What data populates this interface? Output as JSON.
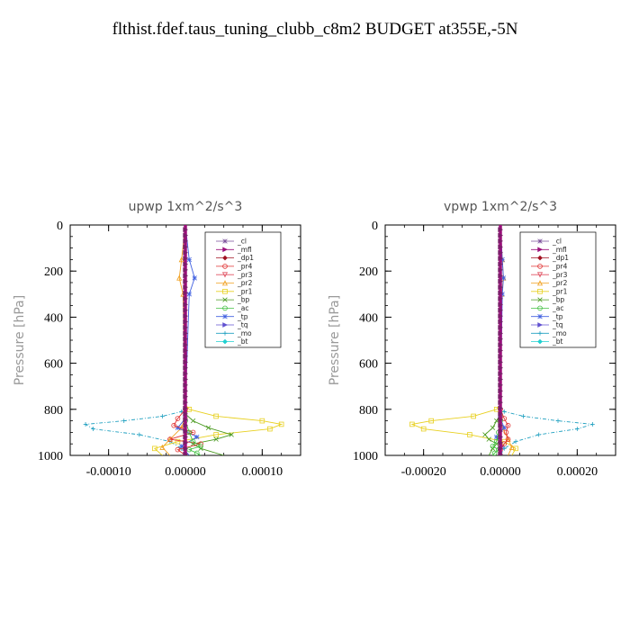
{
  "title": "flthist.fdef.taus_tuning_clubb_c8m2  BUDGET at355E,-5N",
  "legend_entries": [
    {
      "name": "_cl",
      "color": "#7a4f9a",
      "marker": "star"
    },
    {
      "name": "_mfl",
      "color": "#9b0f7a",
      "marker": "tri-right"
    },
    {
      "name": "_dp1",
      "color": "#a01020",
      "marker": "diamond"
    },
    {
      "name": "_pr4",
      "color": "#e03030",
      "marker": "circle"
    },
    {
      "name": "_pr3",
      "color": "#e05060",
      "marker": "tri-down"
    },
    {
      "name": "_pr2",
      "color": "#f0a020",
      "marker": "tri-up"
    },
    {
      "name": "_pr1",
      "color": "#e8d020",
      "marker": "square"
    },
    {
      "name": "_bp",
      "color": "#4a9a20",
      "marker": "x"
    },
    {
      "name": "_ac",
      "color": "#40c040",
      "marker": "circle"
    },
    {
      "name": "_tp",
      "color": "#4060e0",
      "marker": "star"
    },
    {
      "name": "_tq",
      "color": "#6050d0",
      "marker": "tri-right"
    },
    {
      "name": "_mo",
      "color": "#20a0c0",
      "marker": "plus"
    },
    {
      "name": "_bt",
      "color": "#20d0d0",
      "marker": "diamond"
    }
  ],
  "chart_data": [
    {
      "type": "line",
      "title": "upwp   1xm^2/s^3",
      "ylabel": "Pressure [hPa]",
      "xlim": [
        -0.00015,
        0.00015
      ],
      "ylim": [
        1000,
        0
      ],
      "xticks": [
        -0.0001,
        0,
        0.0001
      ],
      "xtick_labels": [
        "-0.00010",
        "0.00000",
        "0.00010"
      ],
      "yticks": [
        0,
        200,
        400,
        600,
        800,
        1000
      ],
      "ytick_labels": [
        "0",
        "200",
        "400",
        "600",
        "800",
        "1000"
      ],
      "legend_position": "top-right",
      "series": [
        {
          "name": "_mo",
          "x": [
            0,
            0,
            -5e-06,
            -3e-05,
            -8e-05,
            -0.00013,
            -0.00012,
            -6e-05,
            -2e-05,
            -5e-06,
            0
          ],
          "y": [
            0,
            780,
            810,
            830,
            850,
            865,
            885,
            910,
            940,
            970,
            1000
          ]
        },
        {
          "name": "_pr1",
          "x": [
            0,
            0,
            5e-06,
            4e-05,
            0.0001,
            0.000125,
            0.00011,
            4e-05,
            -1e-05,
            -4e-05,
            -3e-05
          ],
          "y": [
            0,
            780,
            800,
            830,
            850,
            865,
            885,
            910,
            940,
            970,
            1000
          ]
        },
        {
          "name": "_pr2",
          "x": [
            0,
            -5e-06,
            -8e-06,
            -3e-06,
            0,
            0,
            -5e-06,
            -2e-05,
            -3e-05,
            -2e-05
          ],
          "y": [
            0,
            150,
            230,
            300,
            780,
            830,
            880,
            930,
            965,
            1000
          ]
        },
        {
          "name": "_bp",
          "x": [
            0,
            0,
            1e-05,
            3e-05,
            6e-05,
            4e-05,
            1e-05,
            2e-05,
            5e-05
          ],
          "y": [
            0,
            820,
            850,
            880,
            910,
            930,
            950,
            970,
            1000
          ]
        },
        {
          "name": "_tp",
          "x": [
            0,
            5e-06,
            1.2e-05,
            5e-06,
            0,
            0,
            -1e-05,
            1.5e-05,
            -5e-06,
            5e-06
          ],
          "y": [
            0,
            150,
            230,
            300,
            780,
            840,
            880,
            920,
            960,
            1000
          ]
        },
        {
          "name": "_pr4",
          "x": [
            0,
            0,
            -1e-05,
            -1.5e-05,
            1e-05,
            -2e-05,
            2e-05,
            -1e-05,
            0
          ],
          "y": [
            0,
            800,
            840,
            870,
            900,
            930,
            950,
            975,
            1000
          ]
        },
        {
          "name": "_ac",
          "x": [
            0,
            0,
            5e-06,
            1e-05,
            2e-05,
            5e-06,
            1.5e-05,
            2e-05
          ],
          "y": [
            0,
            850,
            900,
            940,
            960,
            975,
            990,
            1000
          ]
        },
        {
          "name": "_mfl",
          "x": [
            0,
            0,
            0,
            0
          ],
          "y": [
            0,
            500,
            900,
            1000
          ]
        }
      ]
    },
    {
      "type": "line",
      "title": "vpwp   1xm^2/s^3",
      "ylabel": "Pressure [hPa]",
      "xlim": [
        -0.0003,
        0.0003
      ],
      "ylim": [
        1000,
        0
      ],
      "xticks": [
        -0.0002,
        0,
        0.0002
      ],
      "xtick_labels": [
        "-0.00020",
        "0.00000",
        "0.00020"
      ],
      "yticks": [
        0,
        200,
        400,
        600,
        800,
        1000
      ],
      "ytick_labels": [
        "0",
        "200",
        "400",
        "600",
        "800",
        "1000"
      ],
      "legend_position": "top-right",
      "series": [
        {
          "name": "_mo",
          "x": [
            0,
            0,
            1e-05,
            6e-05,
            0.00015,
            0.00024,
            0.0002,
            0.0001,
            4e-05,
            1e-05,
            0
          ],
          "y": [
            0,
            780,
            810,
            830,
            850,
            865,
            885,
            910,
            940,
            970,
            1000
          ]
        },
        {
          "name": "_pr1",
          "x": [
            0,
            0,
            -1e-05,
            -7e-05,
            -0.00018,
            -0.00023,
            -0.0002,
            -8e-05,
            1e-05,
            4e-05,
            3e-05
          ],
          "y": [
            0,
            780,
            800,
            830,
            850,
            865,
            885,
            910,
            940,
            970,
            1000
          ]
        },
        {
          "name": "_pr2",
          "x": [
            0,
            5e-06,
            8e-06,
            3e-06,
            0,
            0,
            5e-06,
            2e-05,
            3e-05,
            2e-05
          ],
          "y": [
            0,
            150,
            230,
            300,
            780,
            830,
            880,
            930,
            965,
            1000
          ]
        },
        {
          "name": "_bp",
          "x": [
            0,
            0,
            -1e-05,
            -2e-05,
            -4e-05,
            -3e-05,
            -1e-05,
            -2e-05,
            -3e-05
          ],
          "y": [
            0,
            820,
            850,
            880,
            910,
            930,
            950,
            970,
            1000
          ]
        },
        {
          "name": "_tp",
          "x": [
            0,
            5e-06,
            8e-06,
            5e-06,
            0,
            0,
            1e-05,
            -1e-05,
            5e-06,
            0
          ],
          "y": [
            0,
            150,
            230,
            300,
            780,
            840,
            880,
            920,
            960,
            1000
          ]
        },
        {
          "name": "_pr4",
          "x": [
            0,
            0,
            1e-05,
            2e-05,
            1.5e-05,
            2e-05,
            1e-05,
            0,
            0
          ],
          "y": [
            0,
            800,
            840,
            870,
            900,
            930,
            950,
            975,
            1000
          ]
        },
        {
          "name": "_ac",
          "x": [
            0,
            0,
            -5e-06,
            -1e-05,
            -2e-05,
            -5e-06,
            -1.5e-05,
            -2e-05
          ],
          "y": [
            0,
            850,
            900,
            940,
            960,
            975,
            990,
            1000
          ]
        },
        {
          "name": "_mfl",
          "x": [
            0,
            0,
            0,
            0
          ],
          "y": [
            0,
            500,
            900,
            1000
          ]
        }
      ]
    }
  ]
}
